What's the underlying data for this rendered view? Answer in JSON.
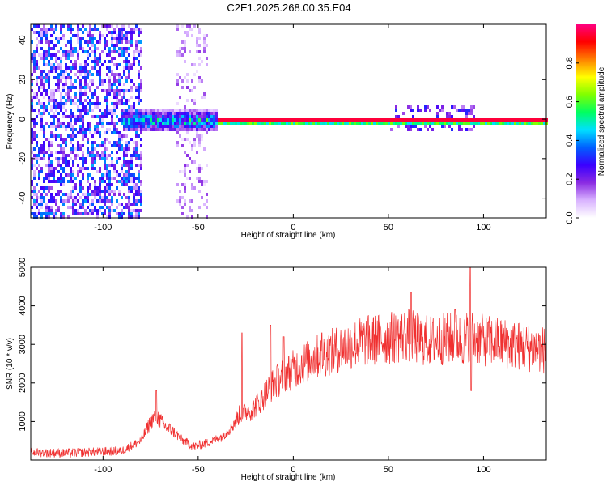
{
  "title": "C2E1.2025.268.00.35.E04",
  "colors": {
    "snr_line": "#f03030",
    "frame": "#000000",
    "background": "#ffffff"
  },
  "chart_data": [
    {
      "type": "heatmap",
      "xlabel": "Height of straight line (km)",
      "ylabel": "Frequency (Hz)",
      "xlim": [
        -138,
        133
      ],
      "ylim": [
        -50,
        48
      ],
      "x_ticks": [
        -100,
        -50,
        0,
        50,
        100
      ],
      "y_ticks": [
        -40,
        -20,
        0,
        20,
        40
      ],
      "colorbar": {
        "label": "Normalized spectral amplitude",
        "range": [
          0,
          1
        ],
        "ticks": [
          0.0,
          0.2,
          0.4,
          0.6,
          0.8
        ],
        "colormap": [
          "#ffffff",
          "#d9b3ff",
          "#8a2be2",
          "#3a00ff",
          "#0060ff",
          "#00e0ff",
          "#00ff60",
          "#80ff00",
          "#ffff00",
          "#ff8000",
          "#ff0000",
          "#ff0080"
        ]
      },
      "regions": [
        {
          "name": "noise-band",
          "x_range": [
            -138,
            -80
          ],
          "freq_range": [
            -50,
            48
          ],
          "amplitude": 0.18
        },
        {
          "name": "secondary-noise",
          "x_range": [
            -62,
            -45
          ],
          "freq_range": [
            -50,
            48
          ],
          "amplitude": 0.06
        },
        {
          "name": "carrier-onset",
          "x_range": [
            -90,
            -40
          ],
          "freq_range": [
            -5,
            6
          ],
          "amplitude": 0.45
        },
        {
          "name": "carrier-steady",
          "x_range": [
            -40,
            133
          ],
          "freq_range": [
            -2,
            2
          ],
          "amplitude": 0.95
        },
        {
          "name": "carrier-spread",
          "x_range": [
            50,
            95
          ],
          "freq_range": [
            -5,
            7
          ],
          "amplitude": 0.2
        }
      ]
    },
    {
      "type": "line",
      "xlabel": "Height of straight line (km)",
      "ylabel": "SNR (10 * v/v)",
      "xlim": [
        -138,
        133
      ],
      "ylim": [
        0,
        5000
      ],
      "x_ticks": [
        -100,
        -50,
        0,
        50,
        100
      ],
      "y_ticks": [
        1000,
        2000,
        3000,
        4000,
        5000
      ],
      "series": [
        {
          "x": [
            -138,
            -120,
            -100,
            -90,
            -80,
            -75,
            -72,
            -68,
            -62,
            -58,
            -52,
            -45,
            -38,
            -32,
            -28,
            -22,
            -18,
            -12,
            -5,
            0,
            10,
            20,
            30,
            40,
            50,
            55,
            60,
            65,
            70,
            75,
            80,
            85,
            90,
            93,
            95,
            100,
            110,
            120,
            133
          ],
          "y": [
            200,
            180,
            220,
            240,
            500,
            1000,
            1150,
            900,
            700,
            500,
            350,
            450,
            600,
            900,
            1200,
            1300,
            1500,
            1900,
            2200,
            2350,
            2650,
            2800,
            3000,
            3100,
            3150,
            3200,
            3250,
            3150,
            3100,
            3100,
            3150,
            3150,
            3100,
            3300,
            3150,
            3100,
            3050,
            2950,
            2850
          ],
          "spikes": [
            {
              "x": -72,
              "y": 1800
            },
            {
              "x": -27,
              "y": 3300
            },
            {
              "x": -12,
              "y": 3500
            },
            {
              "x": -5,
              "y": 3200
            },
            {
              "x": 15,
              "y": 3300
            },
            {
              "x": 62,
              "y": 4350
            },
            {
              "x": 85,
              "y": 3900
            },
            {
              "x": 93,
              "y": 5000
            },
            {
              "x": 93.5,
              "y": 1800
            }
          ]
        }
      ]
    }
  ]
}
